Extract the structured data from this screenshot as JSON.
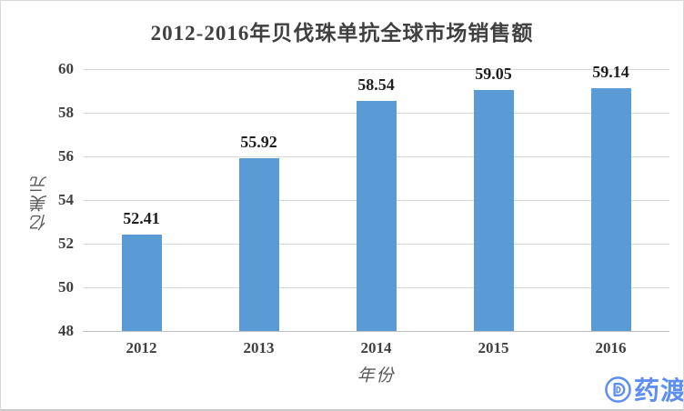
{
  "chart_data": {
    "type": "bar",
    "title": "2012-2016年贝伐珠单抗全球市场销售额",
    "categories": [
      "2012",
      "2013",
      "2014",
      "2015",
      "2016"
    ],
    "values": [
      52.41,
      55.92,
      58.54,
      59.05,
      59.14
    ],
    "data_labels": [
      "52.41",
      "55.92",
      "58.54",
      "59.05",
      "59.14"
    ],
    "xlabel": "年份",
    "ylabel": "亿美元",
    "ylim": [
      48,
      60
    ],
    "ytick_step": 2,
    "yticks": [
      48,
      50,
      52,
      54,
      56,
      58,
      60
    ],
    "grid": true,
    "legend": false,
    "bar_color": "#5B9BD5"
  },
  "watermark": {
    "brand_text": "药渡",
    "icon": "pharmacodia-d-logo-icon",
    "color": "#5E8FF0"
  },
  "colors": {
    "gridline": "#D9D9D9",
    "axis_line": "#BFBFBF",
    "title_text": "#404040",
    "tick_text": "#404040",
    "data_label_text": "#1F1F1F",
    "axis_title_text": "#595959",
    "background": "#FFFFFF",
    "border": "#D9D9D9"
  }
}
